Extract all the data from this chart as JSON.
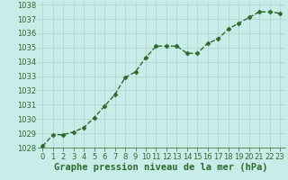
{
  "x": [
    0,
    1,
    2,
    3,
    4,
    5,
    6,
    7,
    8,
    9,
    10,
    11,
    12,
    13,
    14,
    15,
    16,
    17,
    18,
    19,
    20,
    21,
    22,
    23
  ],
  "y": [
    1028.1,
    1028.9,
    1028.9,
    1029.1,
    1029.4,
    1030.1,
    1030.9,
    1031.7,
    1032.9,
    1033.3,
    1034.3,
    1035.1,
    1035.1,
    1035.1,
    1034.6,
    1034.6,
    1035.3,
    1035.6,
    1036.3,
    1036.7,
    1037.1,
    1037.5,
    1037.5,
    1037.4
  ],
  "xlim": [
    -0.5,
    23.5
  ],
  "ylim": [
    1028,
    1038.2
  ],
  "yticks": [
    1028,
    1029,
    1030,
    1031,
    1032,
    1033,
    1034,
    1035,
    1036,
    1037,
    1038
  ],
  "xticks": [
    0,
    1,
    2,
    3,
    4,
    5,
    6,
    7,
    8,
    9,
    10,
    11,
    12,
    13,
    14,
    15,
    16,
    17,
    18,
    19,
    20,
    21,
    22,
    23
  ],
  "xlabel": "Graphe pression niveau de la mer (hPa)",
  "line_color": "#2d6a2d",
  "marker": "D",
  "marker_size": 2.5,
  "bg_color": "#c8ede8",
  "grid_color": "#aad4cc",
  "xlabel_fontsize": 7.5,
  "tick_fontsize": 6,
  "line_width": 1.0
}
